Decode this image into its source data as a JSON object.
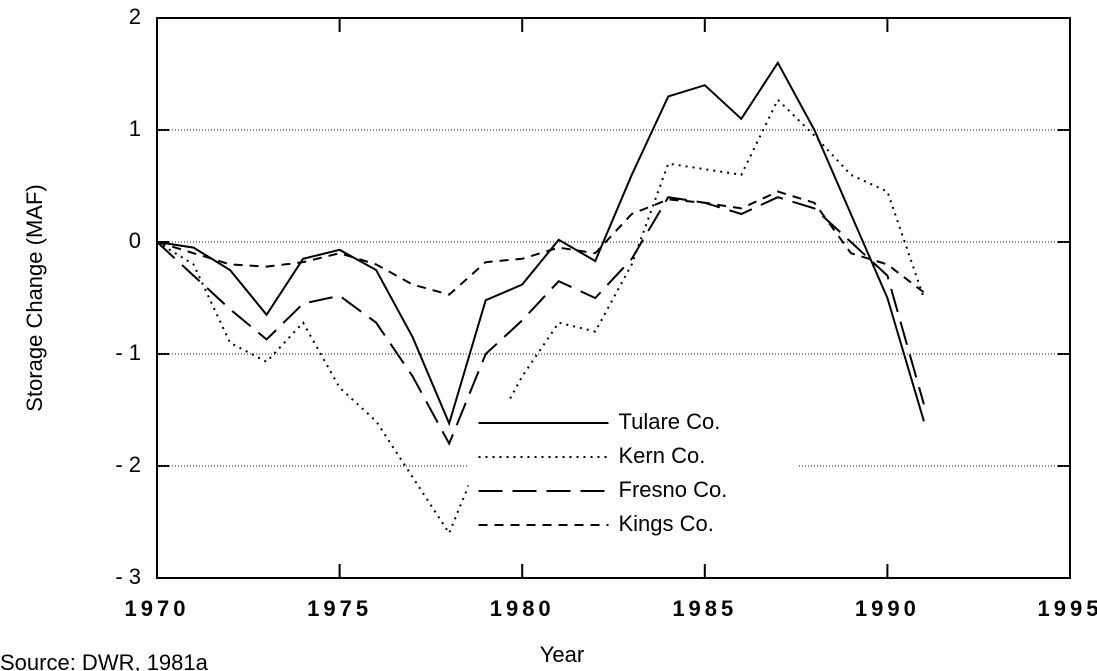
{
  "chart_data": {
    "type": "line",
    "x_label": "Year",
    "y_label": "Storage Change (MAF)",
    "source": "Source: DWR, 1981a",
    "x": [
      1970,
      1971,
      1972,
      1973,
      1974,
      1975,
      1976,
      1977,
      1978,
      1979,
      1980,
      1981,
      1982,
      1983,
      1984,
      1985,
      1986,
      1987,
      1988,
      1989,
      1990,
      1991
    ],
    "series": [
      {
        "name": "Tulare Co.",
        "color": "#000000",
        "dash": "solid",
        "values": [
          0,
          -0.05,
          -0.25,
          -0.65,
          -0.15,
          -0.07,
          -0.25,
          -0.85,
          -1.62,
          -0.52,
          -0.38,
          0.02,
          -0.17,
          0.6,
          1.3,
          1.4,
          1.1,
          1.6,
          1.0,
          0.25,
          -0.5,
          -1.6
        ]
      },
      {
        "name": "Kern Co.",
        "color": "#000000",
        "dash": "dotted",
        "values": [
          0,
          -0.2,
          -0.9,
          -1.07,
          -0.72,
          -1.3,
          -1.6,
          -2.1,
          -2.6,
          -1.8,
          -1.2,
          -0.72,
          -0.8,
          -0.2,
          0.7,
          0.65,
          0.6,
          1.27,
          0.95,
          0.6,
          0.45,
          -0.5
        ]
      },
      {
        "name": "Fresno Co.",
        "color": "#000000",
        "dash": "long-dash",
        "values": [
          0,
          -0.3,
          -0.6,
          -0.87,
          -0.55,
          -0.48,
          -0.72,
          -1.2,
          -1.8,
          -1.0,
          -0.7,
          -0.35,
          -0.5,
          -0.15,
          0.4,
          0.35,
          0.25,
          0.4,
          0.3,
          0.0,
          -0.3,
          -1.45
        ]
      },
      {
        "name": "Kings Co.",
        "color": "#000000",
        "dash": "short-dash",
        "values": [
          0,
          -0.1,
          -0.2,
          -0.22,
          -0.18,
          -0.1,
          -0.2,
          -0.38,
          -0.47,
          -0.18,
          -0.15,
          -0.05,
          -0.1,
          0.25,
          0.38,
          0.35,
          0.3,
          0.45,
          0.35,
          -0.1,
          -0.2,
          -0.45
        ]
      }
    ],
    "xlim": [
      1970,
      1995
    ],
    "xticks": [
      1970,
      1975,
      1980,
      1985,
      1990,
      1995
    ],
    "ylim": [
      -3,
      2
    ],
    "yticks": [
      {
        "value": -3,
        "label": "- 3"
      },
      {
        "value": -2,
        "label": "- 2"
      },
      {
        "value": -1,
        "label": "- 1"
      },
      0,
      1,
      2
    ],
    "grid": true,
    "legend": "lower center"
  }
}
